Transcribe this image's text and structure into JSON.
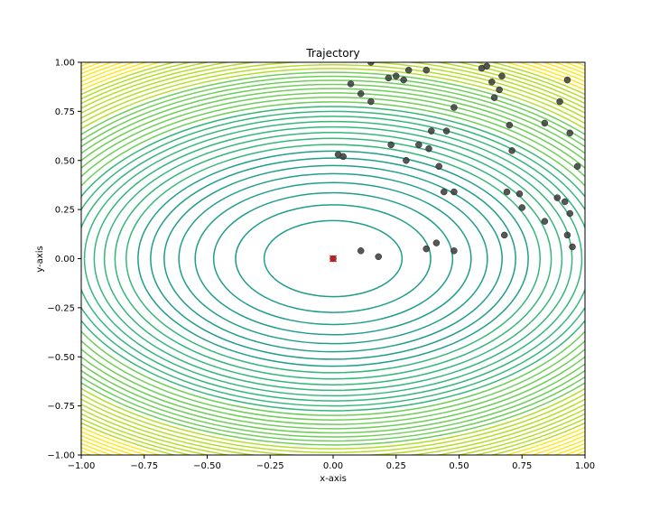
{
  "chart_data": {
    "type": "scatter",
    "title": "Trajectory",
    "xlabel": "x-axis",
    "ylabel": "y-axis",
    "xlim": [
      -1.0,
      1.0
    ],
    "ylim": [
      -1.0,
      1.0
    ],
    "grid": false,
    "legend": "none",
    "x_ticks": [
      "−1.00",
      "−0.75",
      "−0.50",
      "−0.25",
      "0.00",
      "0.25",
      "0.50",
      "0.75",
      "1.00"
    ],
    "y_ticks": [
      "−1.00",
      "−0.75",
      "−0.50",
      "−0.25",
      "0.00",
      "0.25",
      "0.50",
      "0.75",
      "1.00"
    ],
    "contour": {
      "function": "x^2 + 2*y^2",
      "colormap": "viridis",
      "colors": [
        "#1f9e89",
        "#35b779",
        "#6ece58",
        "#b5de2b",
        "#fde725"
      ]
    },
    "optimum": {
      "x": 0.0,
      "y": 0.0,
      "marker": "x",
      "color": "#ff0000"
    },
    "points": {
      "color": "#3a3a3a",
      "x": [
        0.15,
        0.25,
        0.3,
        0.37,
        0.59,
        0.61,
        0.67,
        0.07,
        0.22,
        0.28,
        0.63,
        0.93,
        0.11,
        0.66,
        0.15,
        0.64,
        0.48,
        0.9,
        0.7,
        0.84,
        0.39,
        0.45,
        0.94,
        0.23,
        0.34,
        0.38,
        0.71,
        0.02,
        0.04,
        0.29,
        0.97,
        0.42,
        0.44,
        0.48,
        0.69,
        0.74,
        0.89,
        0.92,
        0.75,
        0.94,
        0.84,
        0.68,
        0.93,
        0.41,
        0.95,
        0.37,
        0.48,
        0.11,
        0.18,
        0.0
      ],
      "y": [
        1.0,
        0.93,
        0.96,
        0.96,
        0.97,
        0.98,
        0.93,
        0.89,
        0.92,
        0.91,
        0.9,
        0.91,
        0.84,
        0.86,
        0.8,
        0.82,
        0.77,
        0.8,
        0.68,
        0.69,
        0.65,
        0.65,
        0.64,
        0.58,
        0.58,
        0.56,
        0.55,
        0.53,
        0.52,
        0.5,
        0.47,
        0.47,
        0.34,
        0.34,
        0.34,
        0.33,
        0.31,
        0.29,
        0.26,
        0.23,
        0.19,
        0.12,
        0.12,
        0.08,
        0.06,
        0.05,
        0.04,
        0.04,
        0.01,
        0.0
      ]
    }
  }
}
